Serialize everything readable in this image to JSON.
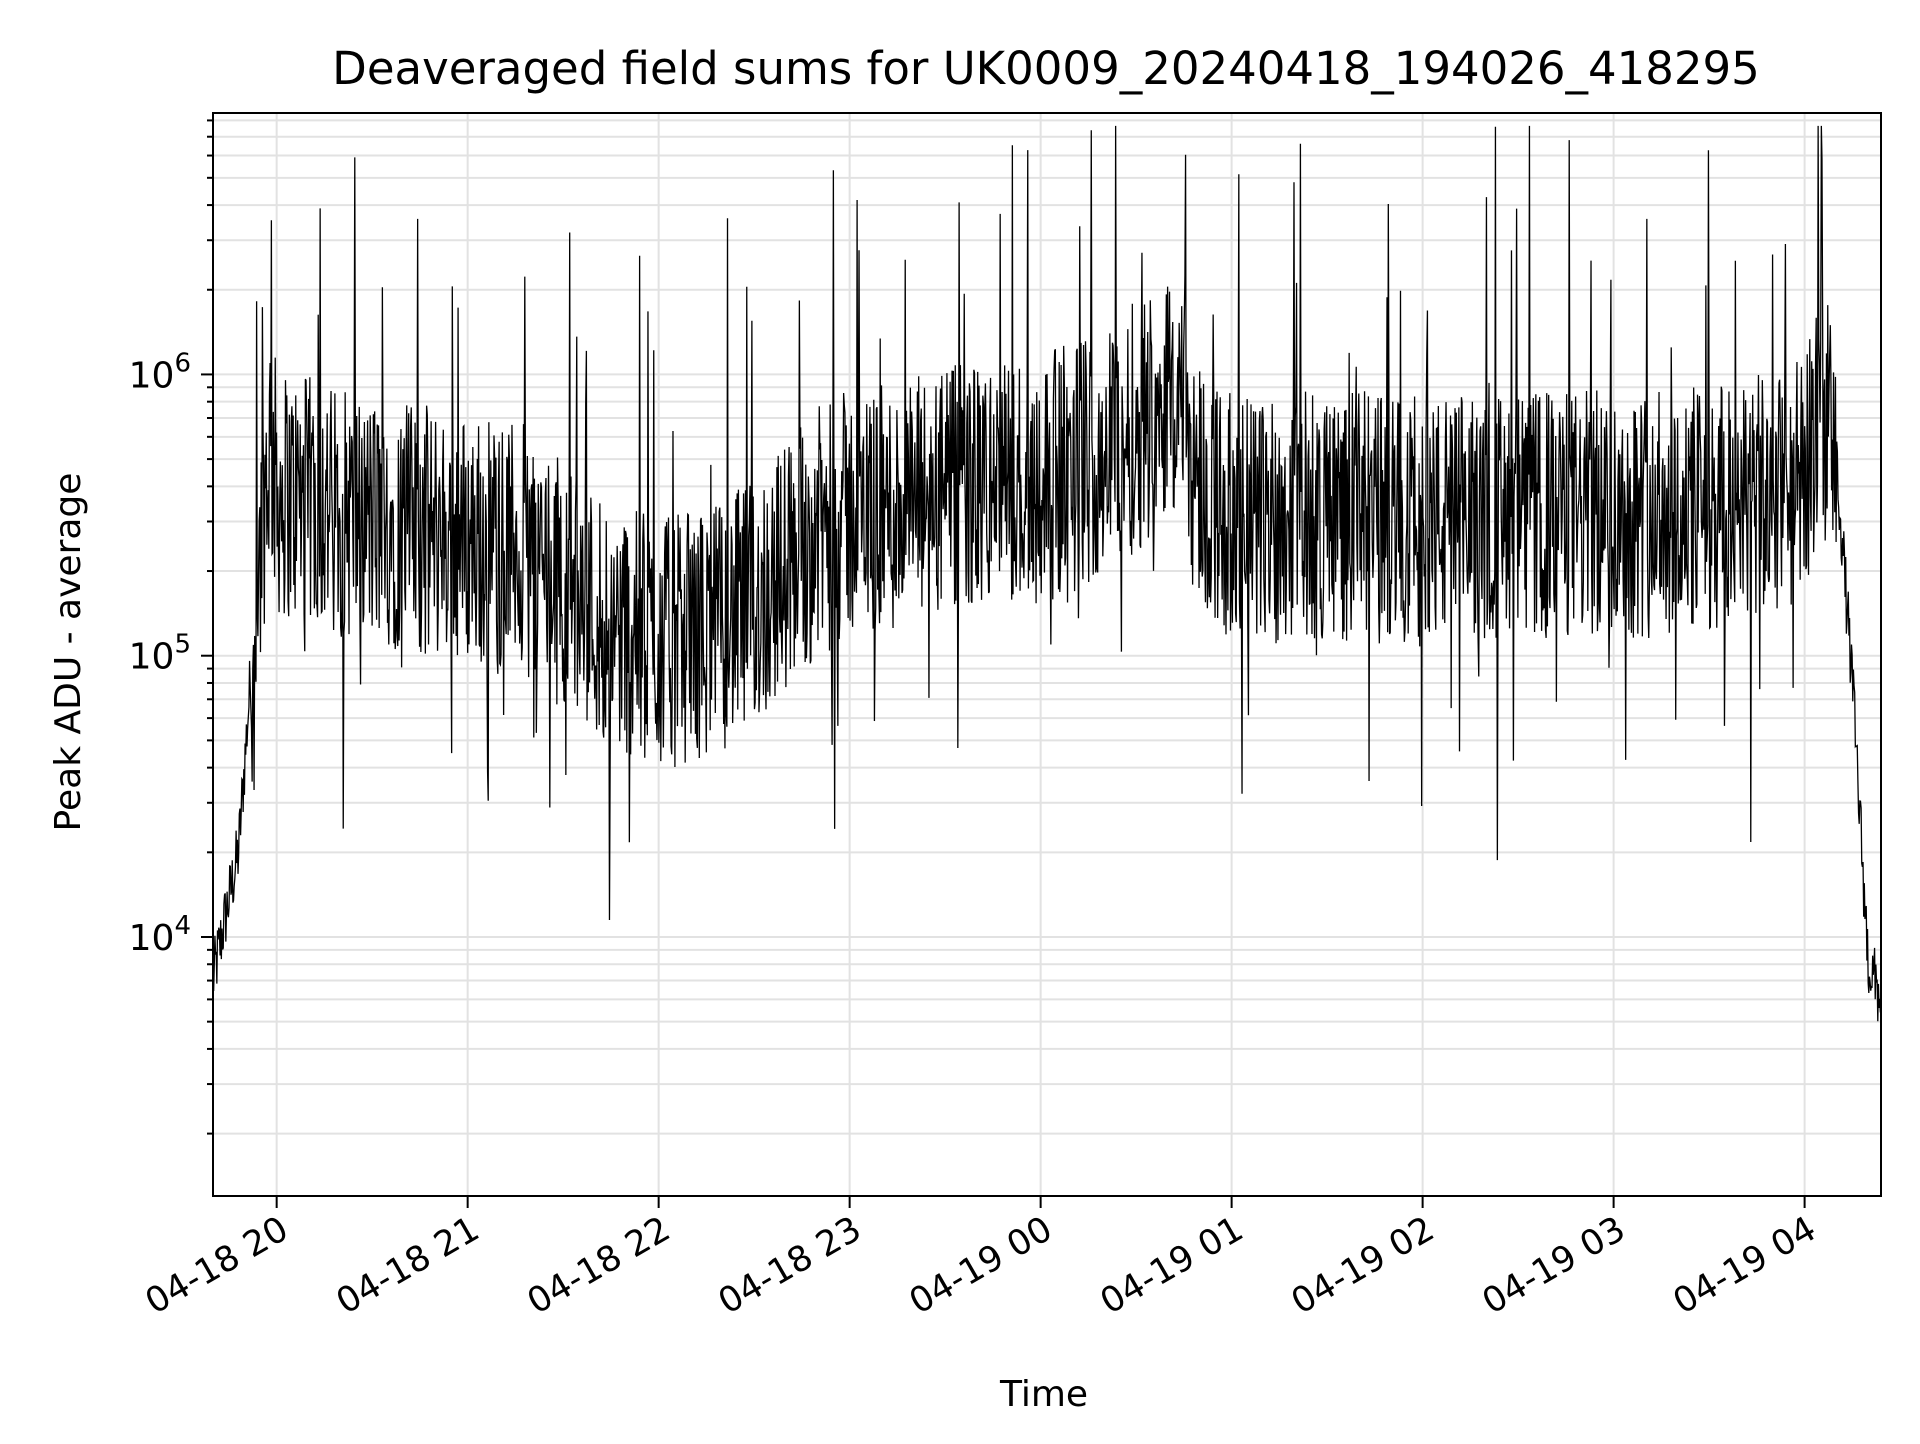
{
  "chart_data": {
    "type": "line",
    "title": "Deaveraged field sums for UK0009_20240418_194026_418295",
    "xlabel": "Time",
    "ylabel": "Peak ADU - average",
    "x_ticks": [
      "04-18 20",
      "04-18 21",
      "04-18 22",
      "04-18 23",
      "04-19 00",
      "04-19 01",
      "04-19 02",
      "04-19 03",
      "04-19 04"
    ],
    "y_ticks": [
      {
        "base": "10",
        "exp": "4",
        "value": 10000
      },
      {
        "base": "10",
        "exp": "5",
        "value": 100000
      },
      {
        "base": "10",
        "exp": "6",
        "value": 1000000
      }
    ],
    "xlim": [
      "2024-04-18 19:40",
      "2024-04-19 04:24"
    ],
    "ylim": [
      1200,
      8500000
    ],
    "yscale": "log",
    "grid": true,
    "line_color": "#000000",
    "series": [
      {
        "x": [
          "2024-04-18 19:40",
          "2024-04-18 19:44",
          "2024-04-18 19:48",
          "2024-04-18 19:52",
          "2024-04-18 19:56",
          "2024-04-18 19:58",
          "2024-04-18 20:00",
          "2024-04-18 20:15",
          "2024-04-18 20:30",
          "2024-04-18 20:45",
          "2024-04-18 21:00",
          "2024-04-18 21:15",
          "2024-04-18 21:30",
          "2024-04-18 21:45",
          "2024-04-18 22:00",
          "2024-04-18 22:15",
          "2024-04-18 22:30",
          "2024-04-18 22:45",
          "2024-04-18 23:00",
          "2024-04-18 23:15",
          "2024-04-18 23:30",
          "2024-04-18 23:45",
          "2024-04-19 00:00",
          "2024-04-19 00:15",
          "2024-04-19 00:30",
          "2024-04-19 00:40",
          "2024-04-19 00:50",
          "2024-04-19 01:00",
          "2024-04-19 01:30",
          "2024-04-19 02:00",
          "2024-04-19 02:30",
          "2024-04-19 03:00",
          "2024-04-19 03:30",
          "2024-04-19 03:50",
          "2024-04-19 04:00",
          "2024-04-19 04:05",
          "2024-04-19 04:10",
          "2024-04-19 04:15",
          "2024-04-19 04:20",
          "2024-04-19 04:24"
        ],
        "values": [
          7000,
          12000,
          20000,
          90000,
          350000,
          600000,
          380000,
          340000,
          300000,
          280000,
          260000,
          250000,
          180000,
          130000,
          110000,
          120000,
          150000,
          250000,
          320000,
          330000,
          380000,
          400000,
          420000,
          500000,
          650000,
          900000,
          420000,
          300000,
          320000,
          300000,
          310000,
          320000,
          330000,
          360000,
          420000,
          800000,
          500000,
          80000,
          8000,
          6000
        ]
      }
    ]
  }
}
